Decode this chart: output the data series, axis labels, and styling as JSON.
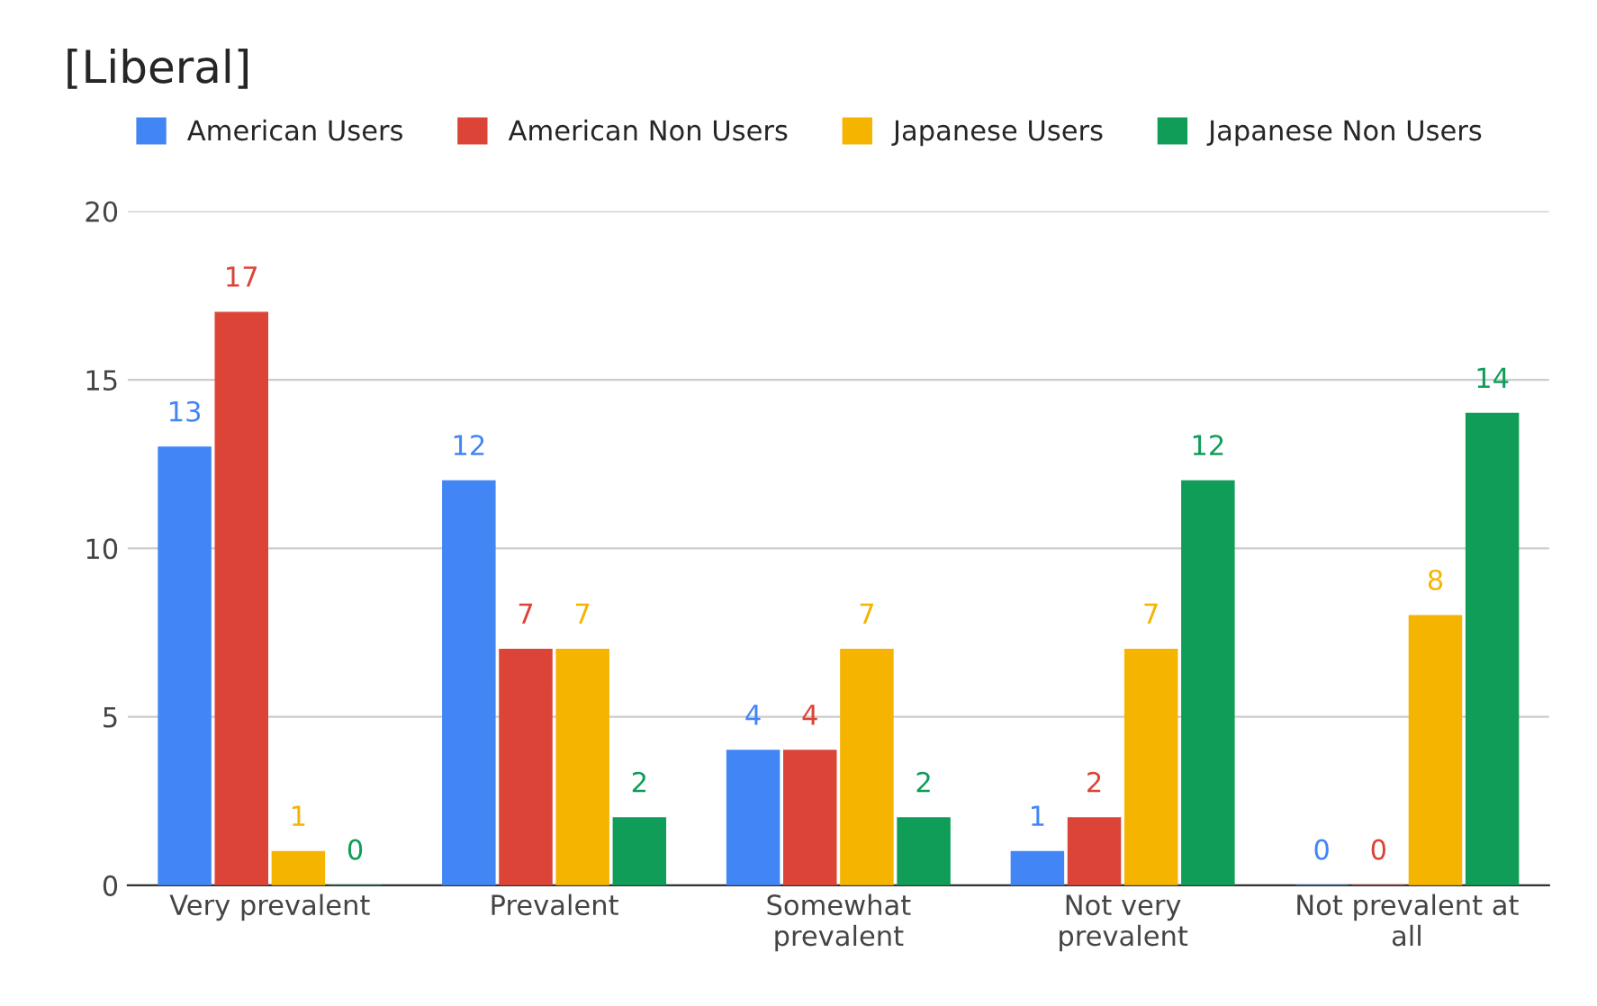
{
  "chart_data": {
    "type": "bar",
    "title": "[Liberal]",
    "categories": [
      "Very prevalent",
      "Prevalent",
      "Somewhat\nprevalent",
      "Not very\nprevalent",
      "Not prevalent at\nall"
    ],
    "series": [
      {
        "name": "American Users",
        "color": "#4285f4",
        "values": [
          13,
          12,
          4,
          1,
          0
        ]
      },
      {
        "name": "American Non Users",
        "color": "#db4437",
        "values": [
          17,
          7,
          4,
          2,
          0
        ]
      },
      {
        "name": "Japanese Users",
        "color": "#f4b400",
        "values": [
          1,
          7,
          7,
          7,
          8
        ]
      },
      {
        "name": "Japanese Non Users",
        "color": "#0f9d58",
        "values": [
          0,
          2,
          2,
          12,
          14
        ]
      }
    ],
    "ylim": [
      0,
      20
    ],
    "yticks": [
      0,
      5,
      10,
      15,
      20
    ],
    "grid": "y",
    "legend": "top",
    "data_labels": true
  }
}
